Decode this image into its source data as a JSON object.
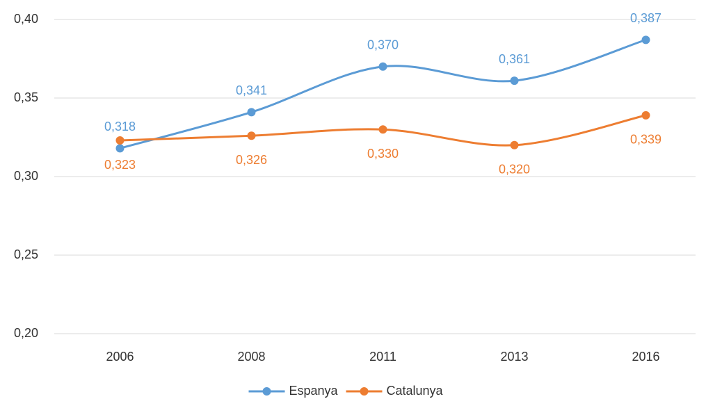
{
  "chart_data": {
    "type": "line",
    "smooth": true,
    "grid": true,
    "legend": "bottom",
    "categories": [
      "2006",
      "2008",
      "2011",
      "2013",
      "2016"
    ],
    "series": [
      {
        "name": "Espanya",
        "color": "#5b9bd5",
        "values": [
          0.318,
          0.341,
          0.37,
          0.361,
          0.387
        ],
        "value_labels": [
          "0,318",
          "0,341",
          "0,370",
          "0,361",
          "0,387"
        ]
      },
      {
        "name": "Catalunya",
        "color": "#ed7d31",
        "values": [
          0.323,
          0.326,
          0.33,
          0.32,
          0.339
        ],
        "value_labels": [
          "0,323",
          "0,326",
          "0,330",
          "0,320",
          "0,339"
        ]
      }
    ],
    "ylim": [
      0.2,
      0.4
    ],
    "yticks": [
      {
        "value": 0.2,
        "label": "0,20"
      },
      {
        "value": 0.25,
        "label": "0,25"
      },
      {
        "value": 0.3,
        "label": "0,30"
      },
      {
        "value": 0.35,
        "label": "0,35"
      },
      {
        "value": 0.4,
        "label": "0,40"
      }
    ]
  }
}
